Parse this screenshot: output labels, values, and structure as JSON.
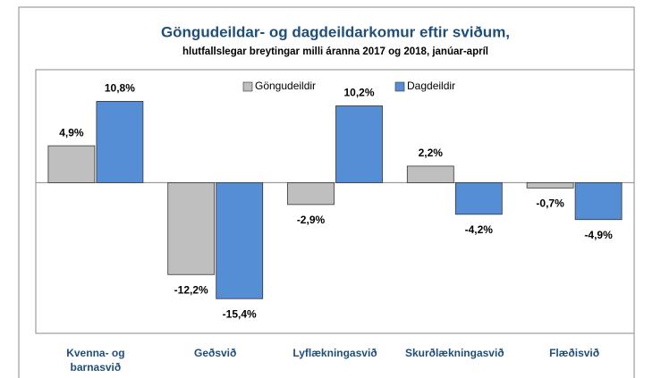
{
  "chart_data": {
    "type": "bar",
    "title": "Göngudeildar- og dagdeildarkomur  eftir sviðum,",
    "subtitle": "hlutfallslegar  breytingar  milli  áranna  2017 og 2018, janúar-apríl",
    "categories": [
      "Kvenna- og barnasvið",
      "Geðsvið",
      "Lyflækningasvið",
      "Skurðlækningasvið",
      "Flæðisvið"
    ],
    "series": [
      {
        "name": "Göngudeildir",
        "color": "#bfbfbf",
        "values": [
          4.9,
          -12.2,
          -2.9,
          2.2,
          -0.7
        ],
        "value_labels": [
          "4,9%",
          "-12,2%",
          "-2,9%",
          "2,2%",
          "-0,7%"
        ]
      },
      {
        "name": "Dagdeildir",
        "color": "#558ed5",
        "values": [
          10.8,
          -15.4,
          10.2,
          -4.2,
          -4.9
        ],
        "value_labels": [
          "10,8%",
          "-15,4%",
          "10,2%",
          "-4,2%",
          "-4,9%"
        ]
      }
    ],
    "ylim": [
      -20,
      15
    ],
    "legend": "top"
  }
}
